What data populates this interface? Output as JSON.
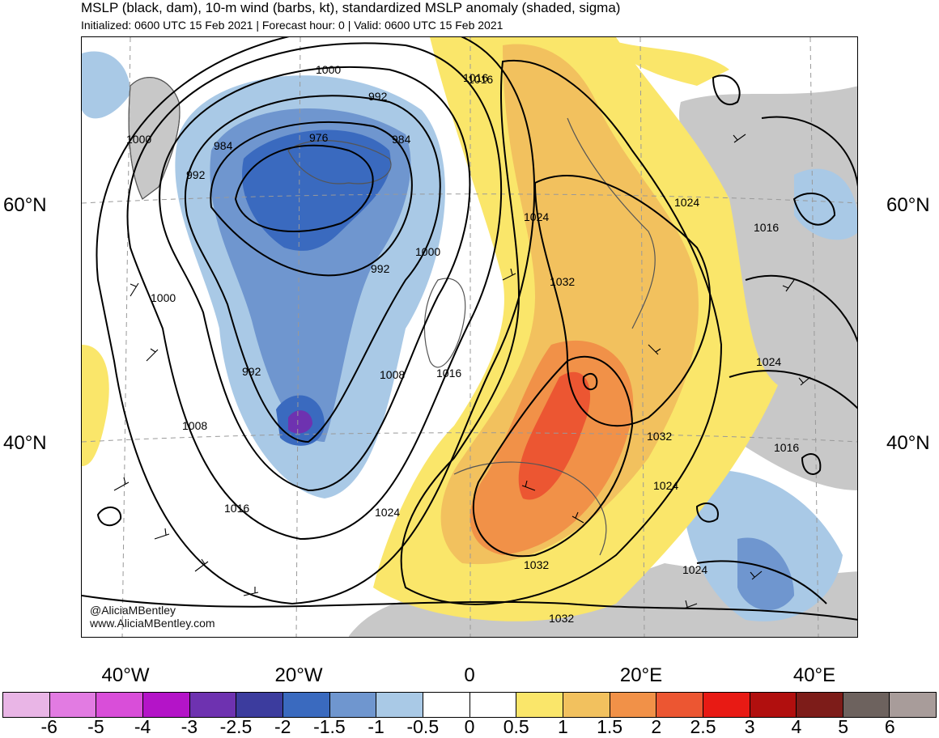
{
  "title": "MSLP (black, dam), 10-m wind (barbs, kt), standardized MSLP anomaly (shaded, sigma)",
  "subtitle": "Initialized: 0600 UTC 15 Feb 2021 | Forecast hour: 0 | Valid: 0600 UTC 15 Feb 2021",
  "lat_labels": [
    "60°N",
    "40°N"
  ],
  "lon_labels": [
    "40°W",
    "20°W",
    "0",
    "20°E",
    "40°E"
  ],
  "credit_handle": "@AliciaMBentley",
  "credit_url": "www.AliciaMBentley.com",
  "isobar_labels": [
    "1000",
    "992",
    "984",
    "976",
    "984",
    "1016",
    "1000",
    "992",
    "1000",
    "1024",
    "992",
    "1024",
    "1032",
    "1000",
    "1016",
    "992",
    "1008",
    "1016",
    "1008",
    "1016",
    "1024",
    "1024",
    "1032",
    "1032",
    "1024",
    "1016",
    "1032",
    "1024",
    "1016",
    "1016"
  ],
  "colorbar": {
    "colors": [
      "#e9b5e6",
      "#e27be2",
      "#d94ed9",
      "#b414c8",
      "#6e32b0",
      "#3c3c9e",
      "#3a6abf",
      "#6f96cf",
      "#a9c9e6",
      "#ffffff",
      "#ffffff",
      "#fae66a",
      "#f2c15e",
      "#f19148",
      "#ec5632",
      "#e81a14",
      "#b10f0e",
      "#7d1c19",
      "#6d625e",
      "#a89c9a"
    ],
    "ticks": [
      "-6",
      "-5",
      "-4",
      "-3",
      "-2.5",
      "-2",
      "-1.5",
      "-1",
      "-0.5",
      "0",
      "0.5",
      "1",
      "1.5",
      "2",
      "2.5",
      "3",
      "4",
      "5",
      "6"
    ]
  }
}
